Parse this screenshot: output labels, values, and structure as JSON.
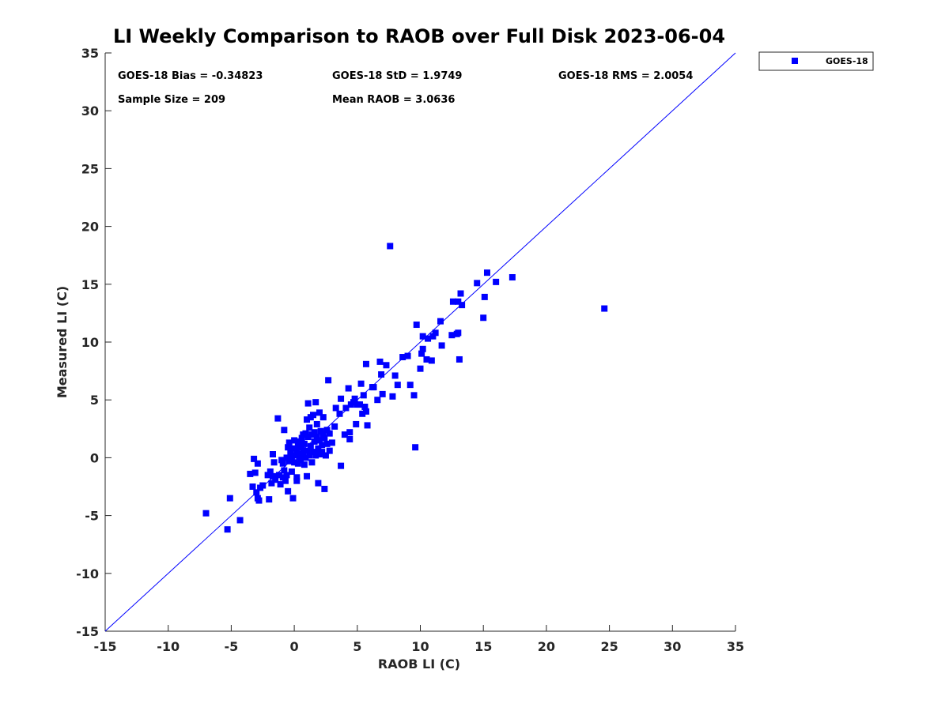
{
  "chart_data": {
    "type": "scatter",
    "title": "LI Weekly Comparison to RAOB over Full Disk 2023-06-04",
    "xlabel": "RAOB LI (C)",
    "ylabel": "Measured LI (C)",
    "xlim": [
      -15,
      35
    ],
    "ylim": [
      -15,
      35
    ],
    "xticks": [
      -15,
      -10,
      -5,
      0,
      5,
      10,
      15,
      20,
      25,
      30,
      35
    ],
    "yticks": [
      -15,
      -10,
      -5,
      0,
      5,
      10,
      15,
      20,
      25,
      30,
      35
    ],
    "grid": false,
    "legend": {
      "position": "outside-top-right",
      "entries": [
        "GOES-18"
      ]
    },
    "reference_line": {
      "type": "y=x",
      "color": "#0000ff"
    },
    "stats": {
      "bias": "GOES-18 Bias = -0.34823",
      "std": "GOES-18 StD = 1.9749",
      "rms": "GOES-18 RMS = 2.0054",
      "sample": "Sample Size = 209",
      "mean": "Mean RAOB = 3.0636"
    },
    "series": [
      {
        "name": "GOES-18",
        "color": "#0000ff",
        "marker": "square",
        "points": [
          [
            -7.0,
            -4.8
          ],
          [
            -5.3,
            -6.2
          ],
          [
            -5.1,
            -3.5
          ],
          [
            -4.3,
            -5.4
          ],
          [
            -3.5,
            -1.4
          ],
          [
            -3.3,
            -2.5
          ],
          [
            -3.2,
            -0.1
          ],
          [
            -3.1,
            -1.3
          ],
          [
            -3.0,
            -3.0
          ],
          [
            -2.9,
            -3.5
          ],
          [
            -2.9,
            -0.5
          ],
          [
            -2.8,
            -3.7
          ],
          [
            -2.7,
            -2.6
          ],
          [
            -2.5,
            -2.4
          ],
          [
            -2.1,
            -1.5
          ],
          [
            -2.0,
            -3.6
          ],
          [
            -1.9,
            -1.2
          ],
          [
            -1.8,
            -2.2
          ],
          [
            -1.7,
            -1.6
          ],
          [
            -1.7,
            0.3
          ],
          [
            -1.6,
            -0.4
          ],
          [
            -1.5,
            -1.9
          ],
          [
            -1.3,
            3.4
          ],
          [
            -1.2,
            -1.5
          ],
          [
            -1.1,
            -2.3
          ],
          [
            -1.0,
            -0.2
          ],
          [
            -0.9,
            -1.7
          ],
          [
            -0.9,
            -0.5
          ],
          [
            -0.8,
            2.4
          ],
          [
            -0.8,
            -1.1
          ],
          [
            -0.7,
            -2.0
          ],
          [
            -0.6,
            -1.5
          ],
          [
            -0.6,
            0.0
          ],
          [
            -0.5,
            -2.9
          ],
          [
            -0.5,
            0.9
          ],
          [
            -0.4,
            1.3
          ],
          [
            -0.4,
            -0.3
          ],
          [
            -0.3,
            0.5
          ],
          [
            -0.2,
            -1.2
          ],
          [
            -0.2,
            0.1
          ],
          [
            -0.1,
            -3.5
          ],
          [
            -0.1,
            0.8
          ],
          [
            0.0,
            1.5
          ],
          [
            0.0,
            -0.4
          ],
          [
            0.1,
            0.2
          ],
          [
            0.2,
            -2.0
          ],
          [
            0.2,
            -1.7
          ],
          [
            0.2,
            0.6
          ],
          [
            0.3,
            1.1
          ],
          [
            0.3,
            -0.5
          ],
          [
            0.4,
            0.1
          ],
          [
            0.4,
            1.4
          ],
          [
            0.5,
            0.3
          ],
          [
            0.5,
            -0.2
          ],
          [
            0.6,
            0.9
          ],
          [
            0.6,
            1.7
          ],
          [
            0.7,
            2.0
          ],
          [
            0.7,
            0.5
          ],
          [
            0.8,
            -0.6
          ],
          [
            0.8,
            1.2
          ],
          [
            0.9,
            0.0
          ],
          [
            0.9,
            2.1
          ],
          [
            1.0,
            -1.6
          ],
          [
            1.0,
            0.6
          ],
          [
            1.0,
            3.3
          ],
          [
            1.1,
            4.7
          ],
          [
            1.1,
            1.8
          ],
          [
            1.2,
            0.2
          ],
          [
            1.2,
            2.6
          ],
          [
            1.3,
            1.0
          ],
          [
            1.3,
            3.5
          ],
          [
            1.4,
            -0.4
          ],
          [
            1.4,
            2.0
          ],
          [
            1.5,
            3.7
          ],
          [
            1.5,
            0.5
          ],
          [
            1.6,
            1.4
          ],
          [
            1.6,
            2.2
          ],
          [
            1.7,
            4.8
          ],
          [
            1.7,
            0.2
          ],
          [
            1.8,
            1.8
          ],
          [
            1.8,
            2.9
          ],
          [
            1.9,
            -2.2
          ],
          [
            1.9,
            0.8
          ],
          [
            2.0,
            3.9
          ],
          [
            2.0,
            1.5
          ],
          [
            2.0,
            0.3
          ],
          [
            2.1,
            2.3
          ],
          [
            2.2,
            1.1
          ],
          [
            2.2,
            0.5
          ],
          [
            2.3,
            2.0
          ],
          [
            2.3,
            3.5
          ],
          [
            2.4,
            -2.7
          ],
          [
            2.4,
            1.7
          ],
          [
            2.5,
            0.2
          ],
          [
            2.6,
            2.4
          ],
          [
            2.6,
            1.2
          ],
          [
            2.7,
            6.7
          ],
          [
            2.8,
            0.6
          ],
          [
            2.8,
            2.1
          ],
          [
            3.0,
            1.3
          ],
          [
            3.2,
            2.7
          ],
          [
            3.3,
            4.3
          ],
          [
            3.6,
            3.8
          ],
          [
            3.7,
            5.1
          ],
          [
            3.7,
            -0.7
          ],
          [
            4.0,
            2.0
          ],
          [
            4.1,
            4.3
          ],
          [
            4.3,
            6.0
          ],
          [
            4.4,
            2.2
          ],
          [
            4.4,
            1.6
          ],
          [
            4.5,
            4.6
          ],
          [
            4.7,
            4.8
          ],
          [
            4.8,
            5.1
          ],
          [
            4.9,
            2.9
          ],
          [
            5.0,
            4.6
          ],
          [
            5.2,
            4.6
          ],
          [
            5.3,
            6.4
          ],
          [
            5.4,
            3.8
          ],
          [
            5.5,
            5.4
          ],
          [
            5.6,
            4.4
          ],
          [
            5.7,
            8.1
          ],
          [
            5.7,
            4.0
          ],
          [
            5.8,
            2.8
          ],
          [
            6.2,
            6.1
          ],
          [
            6.3,
            6.1
          ],
          [
            6.6,
            5.0
          ],
          [
            6.8,
            8.3
          ],
          [
            6.9,
            7.2
          ],
          [
            7.0,
            5.5
          ],
          [
            7.3,
            8.0
          ],
          [
            7.6,
            18.3
          ],
          [
            7.8,
            5.3
          ],
          [
            8.0,
            7.1
          ],
          [
            8.2,
            6.3
          ],
          [
            8.6,
            8.7
          ],
          [
            9.0,
            8.8
          ],
          [
            9.2,
            6.3
          ],
          [
            9.5,
            5.4
          ],
          [
            9.6,
            0.9
          ],
          [
            9.7,
            11.5
          ],
          [
            10.0,
            7.7
          ],
          [
            10.1,
            9.0
          ],
          [
            10.2,
            10.5
          ],
          [
            10.2,
            9.4
          ],
          [
            10.5,
            8.5
          ],
          [
            10.6,
            10.3
          ],
          [
            10.9,
            8.4
          ],
          [
            11.0,
            10.5
          ],
          [
            11.2,
            10.8
          ],
          [
            11.6,
            11.8
          ],
          [
            11.7,
            9.7
          ],
          [
            12.5,
            10.6
          ],
          [
            12.6,
            13.5
          ],
          [
            12.9,
            10.7
          ],
          [
            13.0,
            10.8
          ],
          [
            13.0,
            13.5
          ],
          [
            13.1,
            8.5
          ],
          [
            13.2,
            14.2
          ],
          [
            13.3,
            13.2
          ],
          [
            14.5,
            15.1
          ],
          [
            15.0,
            12.1
          ],
          [
            15.1,
            13.9
          ],
          [
            15.3,
            16.0
          ],
          [
            16.0,
            15.2
          ],
          [
            17.3,
            15.6
          ],
          [
            24.6,
            12.9
          ]
        ]
      }
    ]
  }
}
